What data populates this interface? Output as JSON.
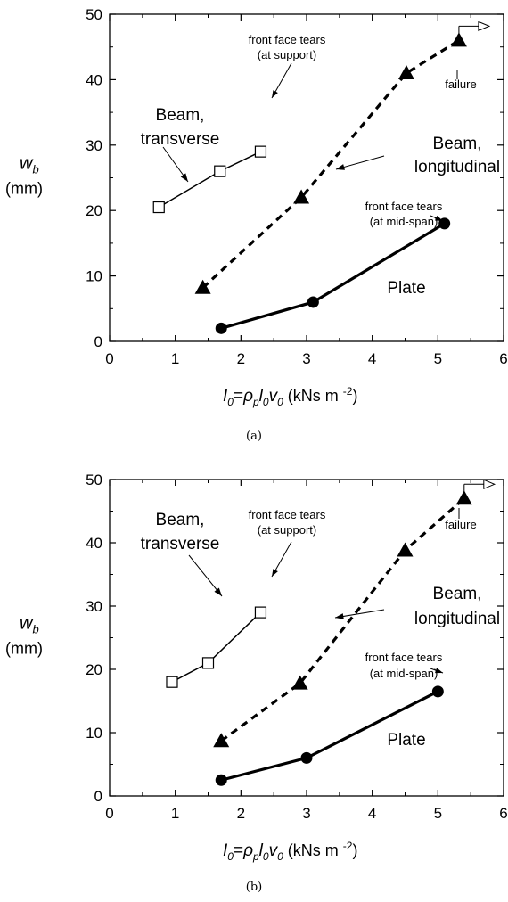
{
  "chart_data": [
    {
      "type": "line",
      "caption": "(a)",
      "ylabel_main": "w",
      "ylabel_sub": "b",
      "ylabel_unit": "(mm)",
      "xlabel_parts": {
        "I": "I",
        "I_sub": "0",
        "eq": "=",
        "rho": "ρ",
        "rho_sub": "p",
        "l": "l",
        "l_sub": "0",
        "v": "v",
        "v_sub": "0",
        "unit": "(kNs m",
        "exp": "-2",
        "close": ")"
      },
      "xlim": [
        0,
        6
      ],
      "ylim": [
        0,
        50
      ],
      "xticks": [
        0,
        1,
        2,
        3,
        4,
        5,
        6
      ],
      "yticks": [
        0,
        10,
        20,
        30,
        40,
        50
      ],
      "grid": false,
      "series": [
        {
          "name": "Beam, transverse",
          "marker": "open-square",
          "style": "thin-solid",
          "points": [
            [
              0.75,
              20.5
            ],
            [
              1.68,
              26
            ],
            [
              2.3,
              29
            ]
          ]
        },
        {
          "name": "Beam, longitudinal",
          "marker": "filled-triangle",
          "style": "thick-dashed",
          "points": [
            [
              1.42,
              8.2
            ],
            [
              2.92,
              22
            ],
            [
              4.52,
              41
            ],
            [
              5.32,
              46
            ]
          ]
        },
        {
          "name": "Plate",
          "marker": "filled-circle",
          "style": "thick-solid",
          "points": [
            [
              1.7,
              2
            ],
            [
              3.1,
              6
            ],
            [
              5.1,
              18
            ]
          ]
        }
      ],
      "annotations": {
        "beam_transverse": [
          "Beam,",
          "transverse"
        ],
        "beam_longitudinal": [
          "Beam,",
          "longitudinal"
        ],
        "plate": "Plate",
        "front_face_support": [
          "front face tears",
          "(at support)"
        ],
        "front_face_midspan": [
          "front face tears",
          "(at mid-span)"
        ],
        "failure": "failure"
      }
    },
    {
      "type": "line",
      "caption": "(b)",
      "ylabel_main": "w",
      "ylabel_sub": "b",
      "ylabel_unit": "(mm)",
      "xlabel_parts": {
        "I": "I",
        "I_sub": "0",
        "eq": "=",
        "rho": "ρ",
        "rho_sub": "p",
        "l": "l",
        "l_sub": "0",
        "v": "v",
        "v_sub": "0",
        "unit": "(kNs m",
        "exp": "-2",
        "close": ")"
      },
      "xlim": [
        0,
        6
      ],
      "ylim": [
        0,
        50
      ],
      "xticks": [
        0,
        1,
        2,
        3,
        4,
        5,
        6
      ],
      "yticks": [
        0,
        10,
        20,
        30,
        40,
        50
      ],
      "grid": false,
      "series": [
        {
          "name": "Beam, transverse",
          "marker": "open-square",
          "style": "thin-solid",
          "points": [
            [
              0.95,
              18
            ],
            [
              1.5,
              21
            ],
            [
              2.3,
              29
            ]
          ]
        },
        {
          "name": "Beam, longitudinal",
          "marker": "filled-triangle",
          "style": "thick-dashed",
          "points": [
            [
              1.7,
              8.7
            ],
            [
              2.9,
              17.8
            ],
            [
              4.5,
              38.8
            ],
            [
              5.4,
              47
            ]
          ]
        },
        {
          "name": "Plate",
          "marker": "filled-circle",
          "style": "thick-solid",
          "points": [
            [
              1.7,
              2.5
            ],
            [
              3.0,
              6
            ],
            [
              5.0,
              16.5
            ]
          ]
        }
      ],
      "annotations": {
        "beam_transverse": [
          "Beam,",
          "transverse"
        ],
        "beam_longitudinal": [
          "Beam,",
          "longitudinal"
        ],
        "plate": "Plate",
        "front_face_support": [
          "front face tears",
          "(at support)"
        ],
        "front_face_midspan": [
          "front face tears",
          "(at mid-span)"
        ],
        "failure": "failure"
      }
    }
  ]
}
